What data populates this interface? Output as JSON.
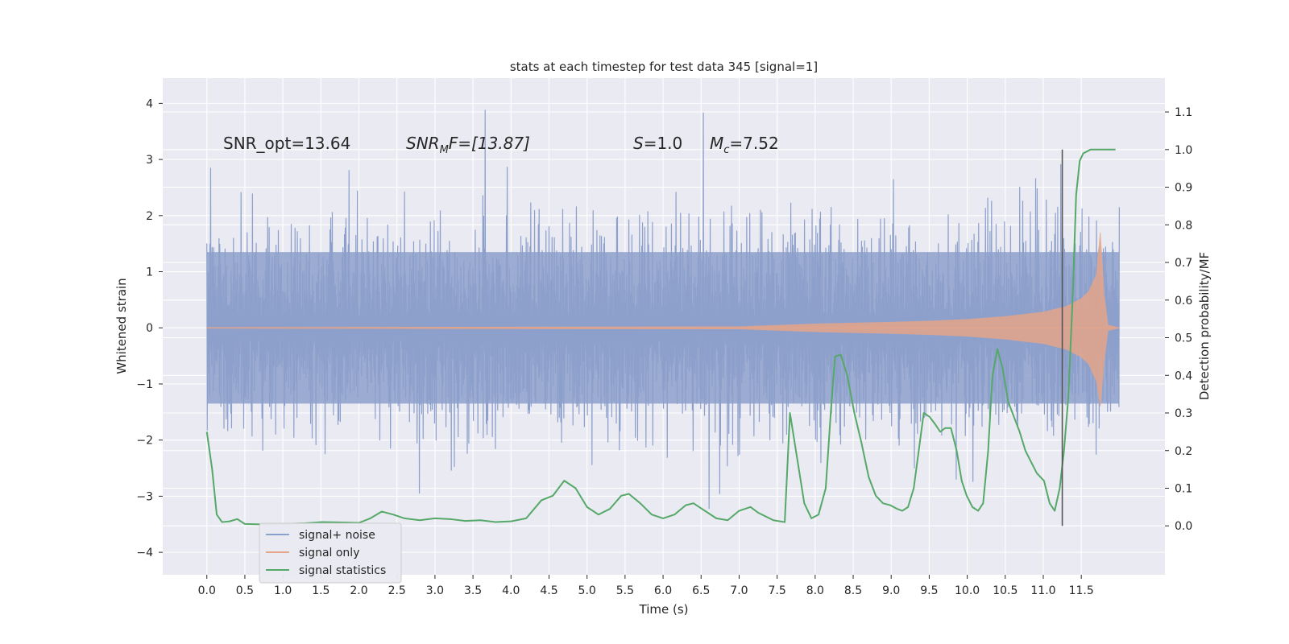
{
  "chart_data": {
    "type": "line",
    "title": "stats at each timestep for test data 345 [signal=1]",
    "xlabel": "Time (s)",
    "ylabel": "Whitened strain",
    "y2label": "Detection probability/MF",
    "xlim": [
      -0.58,
      12.6
    ],
    "ylim": [
      -4.4,
      4.45
    ],
    "y2lim": [
      -0.13,
      1.19
    ],
    "x_ticks": [
      "0.0",
      "0.5",
      "1.0",
      "1.5",
      "2.0",
      "2.5",
      "3.0",
      "3.5",
      "4.0",
      "4.5",
      "5.0",
      "5.5",
      "6.0",
      "6.5",
      "7.0",
      "7.5",
      "8.0",
      "8.5",
      "9.0",
      "9.5",
      "10.0",
      "10.5",
      "11.0",
      "11.5"
    ],
    "y_ticks": [
      "4",
      "3",
      "2",
      "1",
      "0",
      "−1",
      "−2",
      "−3",
      "−4"
    ],
    "y2_ticks": [
      "1.1",
      "1.0",
      "0.9",
      "0.8",
      "0.7",
      "0.6",
      "0.5",
      "0.4",
      "0.3",
      "0.2",
      "0.1",
      "0.0"
    ],
    "grid": true,
    "legend_position": "lower-left",
    "annotations": {
      "snr_opt": "SNR_opt=13.64",
      "snr_mf_base": "SNR",
      "snr_mf_sub": "M",
      "snr_mf_rest": "F=[13.87]",
      "s_label": "S",
      "s_value": "=1.0",
      "mc_base": "M",
      "mc_sub": "c",
      "mc_value": "=7.52"
    },
    "vline_x": 11.25,
    "series": [
      {
        "name": "signal+ noise",
        "color": "#8da0cb",
        "t_start": 0.0,
        "t_end": 12.0,
        "envelope_upper": 1.35,
        "envelope_lower": -1.35,
        "peak_upper_max": 4.1,
        "peak_lower_min": -3.72
      },
      {
        "name": "signal only",
        "color": "#e5a58a",
        "envelope": [
          [
            0.0,
            0.005
          ],
          [
            7.0,
            0.02
          ],
          [
            8.0,
            0.07
          ],
          [
            9.0,
            0.1
          ],
          [
            9.5,
            0.12
          ],
          [
            10.0,
            0.15
          ],
          [
            10.5,
            0.2
          ],
          [
            11.0,
            0.28
          ],
          [
            11.3,
            0.38
          ],
          [
            11.5,
            0.52
          ],
          [
            11.6,
            0.65
          ],
          [
            11.7,
            0.95
          ],
          [
            11.75,
            1.7
          ],
          [
            11.8,
            0.6
          ],
          [
            11.85,
            0.05
          ],
          [
            12.0,
            0.0
          ]
        ]
      },
      {
        "name": "signal statistics",
        "color": "#55a868",
        "points": [
          [
            0.0,
            0.25
          ],
          [
            0.07,
            0.15
          ],
          [
            0.13,
            0.03
          ],
          [
            0.2,
            0.01
          ],
          [
            0.3,
            0.012
          ],
          [
            0.4,
            0.018
          ],
          [
            0.5,
            0.005
          ],
          [
            0.7,
            0.004
          ],
          [
            1.0,
            0.005
          ],
          [
            1.3,
            0.007
          ],
          [
            1.5,
            0.01
          ],
          [
            1.8,
            0.009
          ],
          [
            2.0,
            0.008
          ],
          [
            2.15,
            0.02
          ],
          [
            2.3,
            0.038
          ],
          [
            2.45,
            0.03
          ],
          [
            2.6,
            0.02
          ],
          [
            2.8,
            0.015
          ],
          [
            3.0,
            0.02
          ],
          [
            3.2,
            0.018
          ],
          [
            3.4,
            0.013
          ],
          [
            3.6,
            0.015
          ],
          [
            3.8,
            0.01
          ],
          [
            4.0,
            0.012
          ],
          [
            4.2,
            0.02
          ],
          [
            4.4,
            0.068
          ],
          [
            4.55,
            0.08
          ],
          [
            4.7,
            0.12
          ],
          [
            4.85,
            0.1
          ],
          [
            5.0,
            0.05
          ],
          [
            5.15,
            0.03
          ],
          [
            5.3,
            0.045
          ],
          [
            5.45,
            0.08
          ],
          [
            5.55,
            0.085
          ],
          [
            5.7,
            0.06
          ],
          [
            5.85,
            0.03
          ],
          [
            6.0,
            0.02
          ],
          [
            6.15,
            0.03
          ],
          [
            6.3,
            0.055
          ],
          [
            6.4,
            0.06
          ],
          [
            6.55,
            0.04
          ],
          [
            6.7,
            0.02
          ],
          [
            6.85,
            0.015
          ],
          [
            7.0,
            0.04
          ],
          [
            7.15,
            0.05
          ],
          [
            7.25,
            0.035
          ],
          [
            7.45,
            0.015
          ],
          [
            7.6,
            0.01
          ],
          [
            7.8,
            0.01
          ],
          [
            8.0,
            0.01
          ],
          [
            8.15,
            0.005
          ],
          [
            8.3,
            0.01
          ],
          [
            8.45,
            0.02
          ],
          [
            8.6,
            0.015
          ],
          [
            8.75,
            0.005
          ],
          [
            8.85,
            0.01
          ],
          [
            8.95,
            0.02
          ],
          [
            9.1,
            0.01
          ],
          [
            9.3,
            0.01
          ],
          [
            9.4,
            0.008
          ],
          [
            9.55,
            0.01
          ],
          [
            9.65,
            0.007
          ],
          [
            9.8,
            0.006
          ],
          [
            9.9,
            0.012
          ],
          [
            10.0,
            0.008
          ],
          [
            10.15,
            0.01
          ],
          [
            10.3,
            0.009
          ],
          [
            10.45,
            0.006
          ],
          [
            10.6,
            0.005
          ],
          [
            10.75,
            0.007
          ],
          [
            10.9,
            0.01
          ],
          [
            11.0,
            0.02
          ],
          [
            11.1,
            0.05
          ],
          [
            11.15,
            0.1
          ],
          [
            11.2,
            0.3
          ],
          [
            11.25,
            0.62
          ],
          [
            11.3,
            0.8
          ],
          [
            11.35,
            0.9
          ],
          [
            11.4,
            0.94
          ],
          [
            11.45,
            0.98
          ],
          [
            11.55,
            0.995
          ],
          [
            11.65,
            1.0
          ],
          [
            11.95,
            1.0
          ]
        ],
        "late_peaks": [
          [
            7.6,
            0.0
          ],
          [
            7.75,
            0.3
          ],
          [
            7.88,
            0.62
          ],
          [
            7.96,
            0.58
          ],
          [
            8.05,
            0.45
          ],
          [
            8.15,
            0.3
          ],
          [
            8.25,
            0.18
          ],
          [
            8.35,
            0.06
          ],
          [
            8.45,
            0.02
          ],
          [
            8.55,
            0.03
          ],
          [
            8.65,
            0.1
          ],
          [
            8.72,
            0.3
          ],
          [
            8.78,
            0.45
          ],
          [
            8.86,
            0.455
          ],
          [
            8.95,
            0.4
          ],
          [
            9.05,
            0.3
          ],
          [
            9.15,
            0.22
          ],
          [
            9.25,
            0.13
          ],
          [
            9.35,
            0.08
          ],
          [
            9.45,
            0.06
          ],
          [
            9.55,
            0.055
          ],
          [
            9.65,
            0.045
          ],
          [
            9.72,
            0.04
          ],
          [
            9.8,
            0.05
          ],
          [
            9.88,
            0.1
          ],
          [
            9.95,
            0.2
          ],
          [
            10.02,
            0.3
          ],
          [
            10.1,
            0.29
          ],
          [
            10.18,
            0.27
          ],
          [
            10.25,
            0.25
          ],
          [
            10.32,
            0.26
          ],
          [
            10.4,
            0.26
          ],
          [
            10.48,
            0.2
          ],
          [
            10.55,
            0.12
          ],
          [
            10.62,
            0.08
          ],
          [
            10.7,
            0.05
          ],
          [
            10.78,
            0.04
          ],
          [
            10.85,
            0.06
          ],
          [
            10.92,
            0.2
          ],
          [
            10.98,
            0.4
          ],
          [
            11.05,
            0.47
          ],
          [
            11.12,
            0.42
          ],
          [
            11.2,
            0.33
          ],
          [
            11.28,
            0.29
          ],
          [
            11.36,
            0.25
          ],
          [
            11.44,
            0.2
          ],
          [
            11.52,
            0.17
          ],
          [
            11.6,
            0.14
          ],
          [
            11.7,
            0.12
          ],
          [
            11.78,
            0.06
          ],
          [
            11.85,
            0.04
          ],
          [
            11.92,
            0.1
          ],
          [
            11.98,
            0.2
          ],
          [
            12.04,
            0.34
          ],
          [
            12.1,
            0.6
          ],
          [
            12.15,
            0.88
          ],
          [
            12.2,
            0.97
          ],
          [
            12.25,
            0.99
          ],
          [
            12.35,
            1.0
          ],
          [
            12.7,
            1.0
          ]
        ]
      }
    ]
  }
}
